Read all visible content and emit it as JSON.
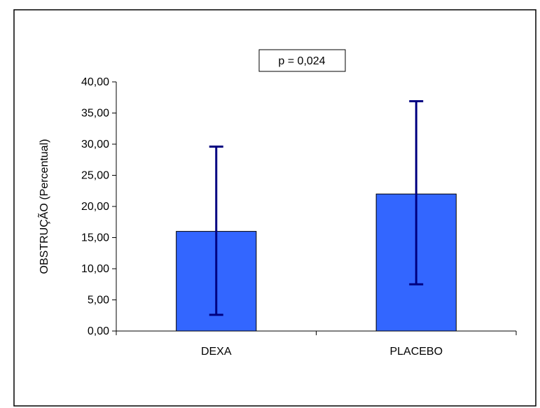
{
  "chart_data": {
    "type": "bar",
    "categories": [
      "DEXA",
      "PLACEBO"
    ],
    "values": [
      16.0,
      22.0
    ],
    "error_low": [
      2.6,
      7.5
    ],
    "error_high": [
      29.6,
      36.9
    ],
    "ylabel": "OBSTRUÇÃO (Percentual)",
    "ylim": [
      0,
      40
    ],
    "yticks": [
      "0,00",
      "5,00",
      "10,00",
      "15,00",
      "20,00",
      "25,00",
      "30,00",
      "35,00",
      "40,00"
    ],
    "annotation": "p = 0,024",
    "grid": false,
    "bar_color": "#3366ff",
    "error_color": "#000080"
  }
}
